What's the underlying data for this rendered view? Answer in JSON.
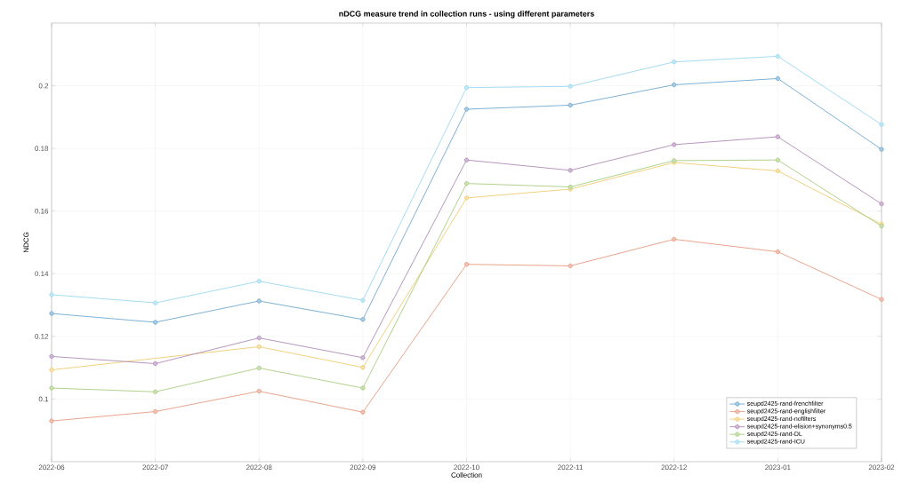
{
  "chart_data": {
    "type": "line",
    "title": "nDCG measure trend in collection runs - using different parameters",
    "xlabel": "Collection",
    "ylabel": "NDCG",
    "categories": [
      "2022-06",
      "2022-07",
      "2022-08",
      "2022-09",
      "2022-10",
      "2022-11",
      "2022-12",
      "2023-01",
      "2023-02"
    ],
    "ylim": [
      0.08,
      0.22
    ],
    "yticks": [
      0.1,
      0.12,
      0.14,
      0.16,
      0.18,
      0.2
    ],
    "grid": true,
    "legend": "bottom right",
    "marker": "circle",
    "line_style": "solid",
    "series": [
      {
        "name": "seupd2425-rand-frenchfilter",
        "color": "#6fa8d0",
        "values": [
          0.1273,
          0.1245,
          0.1313,
          0.1254,
          0.1925,
          0.1938,
          0.2003,
          0.2023,
          0.1797
        ]
      },
      {
        "name": "seupd2425-rand-englishfilter",
        "color": "#e89a80",
        "values": [
          0.093,
          0.096,
          0.1025,
          0.0958,
          0.143,
          0.1425,
          0.151,
          0.147,
          0.1318
        ]
      },
      {
        "name": "seupd2425-rand-nofilters",
        "color": "#f0cc70",
        "values": [
          0.1093,
          null,
          0.1167,
          0.1101,
          0.1642,
          0.167,
          0.1755,
          0.1728,
          0.1558
        ]
      },
      {
        "name": "seupd2425-rand-elision+synonyms0.5",
        "color": "#b08ab8",
        "values": [
          0.1136,
          0.1113,
          0.1195,
          0.1132,
          0.1763,
          0.173,
          0.1812,
          0.1837,
          0.1623
        ]
      },
      {
        "name": "seupd2425-rand-DL",
        "color": "#a8cc80",
        "values": [
          0.1035,
          0.1023,
          0.1099,
          0.1035,
          0.1688,
          0.1677,
          0.1761,
          0.1763,
          0.1552
        ]
      },
      {
        "name": "seupd2425-rand-ICU",
        "color": "#9ad8f0",
        "values": [
          0.1333,
          0.1307,
          0.1376,
          0.1315,
          0.1994,
          0.1998,
          0.2076,
          0.2094,
          0.1876
        ]
      }
    ]
  }
}
